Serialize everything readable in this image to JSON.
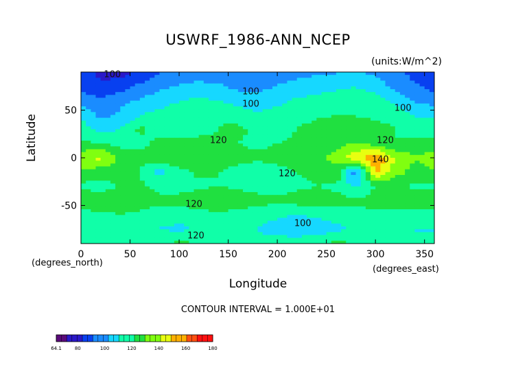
{
  "chart_data": {
    "type": "heatmap",
    "title": "USWRF_1986-ANN_NCEP",
    "units": "(units:W/m^2)",
    "xlabel": "Longitude",
    "ylabel": "Latitude",
    "x_units": "(degrees_east)",
    "y_units": "(degrees_north)",
    "xlim": [
      0,
      360
    ],
    "ylim": [
      -90,
      90
    ],
    "x_ticks": [
      0,
      50,
      100,
      150,
      200,
      250,
      300,
      350
    ],
    "y_ticks": [
      -50,
      0,
      50
    ],
    "contour_interval_text": "CONTOUR INTERVAL = 1.000E+01",
    "contour_labels": [
      {
        "text": "100",
        "lon": 32,
        "lat": 87
      },
      {
        "text": "100",
        "lon": 173,
        "lat": 69
      },
      {
        "text": "100",
        "lon": 173,
        "lat": 56
      },
      {
        "text": "100",
        "lon": 328,
        "lat": 52
      },
      {
        "text": "120",
        "lon": 140,
        "lat": 18
      },
      {
        "text": "120",
        "lon": 310,
        "lat": 18
      },
      {
        "text": "120",
        "lon": 210,
        "lat": -17
      },
      {
        "text": "140",
        "lon": 305,
        "lat": -2
      },
      {
        "text": "120",
        "lon": 115,
        "lat": -49
      },
      {
        "text": "100",
        "lon": 226,
        "lat": -69
      },
      {
        "text": "120",
        "lon": 117,
        "lat": -82
      }
    ],
    "colorbar": {
      "min": 64.1,
      "max": 180,
      "tick_labels": [
        "64.1",
        "80",
        "100",
        "120",
        "140",
        "160",
        "180"
      ],
      "tick_values": [
        64.1,
        80,
        100,
        120,
        140,
        160,
        180
      ],
      "colors": [
        "#5a0a7a",
        "#2a18c8",
        "#0840f0",
        "#1a8cff",
        "#16d8ff",
        "#10ffa8",
        "#20e040",
        "#80ff10",
        "#e8ff10",
        "#ffb000",
        "#ff5010",
        "#ff1010"
      ]
    },
    "grid_lons": [
      0,
      20,
      40,
      60,
      80,
      100,
      120,
      140,
      160,
      180,
      200,
      220,
      240,
      260,
      280,
      300,
      320,
      340,
      360
    ],
    "grid_lats": [
      90,
      75,
      60,
      45,
      30,
      15,
      0,
      -15,
      -30,
      -45,
      -60,
      -75,
      -90
    ],
    "grid_values": [
      [
        88,
        82,
        80,
        86,
        92,
        95,
        97,
        96,
        95,
        96,
        98,
        100,
        101,
        102,
        104,
        100,
        96,
        90,
        88
      ],
      [
        90,
        84,
        88,
        95,
        100,
        104,
        106,
        104,
        100,
        100,
        103,
        106,
        108,
        110,
        112,
        108,
        100,
        94,
        90
      ],
      [
        98,
        96,
        100,
        104,
        108,
        112,
        115,
        112,
        108,
        106,
        110,
        114,
        116,
        118,
        120,
        116,
        110,
        102,
        98
      ],
      [
        110,
        100,
        104,
        112,
        116,
        118,
        120,
        122,
        118,
        114,
        116,
        118,
        120,
        122,
        122,
        120,
        118,
        112,
        110
      ],
      [
        118,
        110,
        112,
        124,
        118,
        116,
        118,
        122,
        124,
        120,
        118,
        122,
        126,
        128,
        124,
        126,
        122,
        118,
        118
      ],
      [
        124,
        122,
        118,
        120,
        124,
        128,
        126,
        124,
        122,
        120,
        122,
        124,
        126,
        128,
        132,
        128,
        122,
        126,
        124
      ],
      [
        138,
        144,
        130,
        124,
        128,
        132,
        130,
        128,
        126,
        124,
        126,
        128,
        130,
        134,
        148,
        162,
        140,
        132,
        138
      ],
      [
        130,
        126,
        128,
        122,
        108,
        118,
        124,
        122,
        118,
        116,
        118,
        122,
        124,
        130,
        96,
        154,
        136,
        128,
        130
      ],
      [
        120,
        118,
        122,
        124,
        120,
        118,
        120,
        122,
        120,
        118,
        118,
        120,
        122,
        120,
        110,
        122,
        124,
        120,
        120
      ],
      [
        128,
        130,
        128,
        126,
        124,
        126,
        128,
        130,
        128,
        126,
        124,
        126,
        128,
        126,
        124,
        126,
        128,
        130,
        128
      ],
      [
        118,
        120,
        122,
        120,
        118,
        116,
        118,
        120,
        118,
        116,
        114,
        112,
        114,
        116,
        118,
        120,
        118,
        116,
        118
      ],
      [
        112,
        114,
        118,
        116,
        112,
        110,
        114,
        118,
        116,
        112,
        108,
        104,
        106,
        110,
        114,
        116,
        114,
        112,
        112
      ],
      [
        114,
        116,
        118,
        120,
        122,
        124,
        122,
        120,
        118,
        116,
        118,
        120,
        122,
        124,
        122,
        120,
        118,
        116,
        114
      ]
    ]
  }
}
